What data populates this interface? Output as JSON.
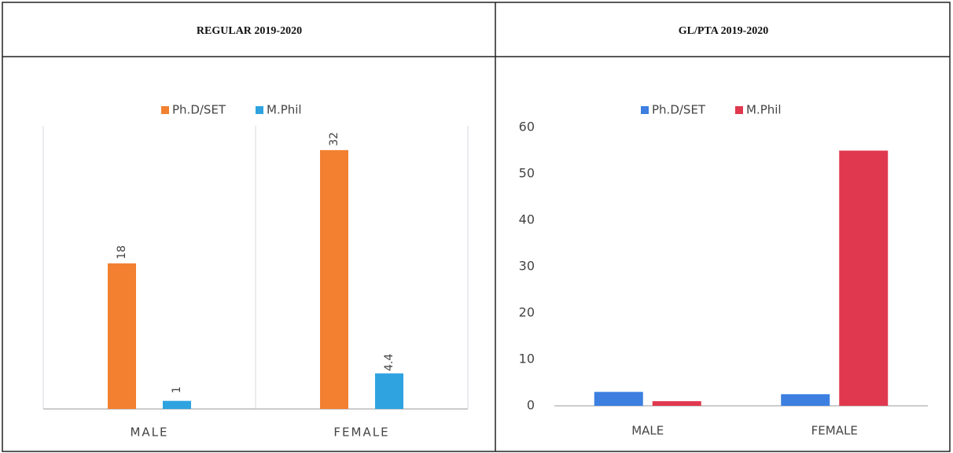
{
  "chart_data": [
    {
      "type": "bar",
      "title": "REGULAR 2019-2020",
      "categories": [
        "MALE",
        "FEMALE"
      ],
      "series": [
        {
          "name": "Ph.D/SET",
          "color": "#f28030",
          "values": [
            18,
            32
          ]
        },
        {
          "name": "M.Phil",
          "color": "#2ea3e0",
          "values": [
            1,
            4.4
          ]
        }
      ],
      "ylim": [
        0,
        35
      ],
      "data_labels": true,
      "category_grid": true
    },
    {
      "type": "bar",
      "title": "GL/PTA 2019-2020",
      "categories": [
        "MALE",
        "FEMALE"
      ],
      "series": [
        {
          "name": "Ph.D/SET",
          "color": "#3c7fe0",
          "values": [
            3,
            2.5
          ]
        },
        {
          "name": "M.Phil",
          "color": "#e0384e",
          "values": [
            1,
            55
          ]
        }
      ],
      "ylim": [
        0,
        60
      ],
      "yticks": [
        0,
        10,
        20,
        30,
        40,
        50,
        60
      ],
      "data_labels": false,
      "category_grid": false
    }
  ]
}
